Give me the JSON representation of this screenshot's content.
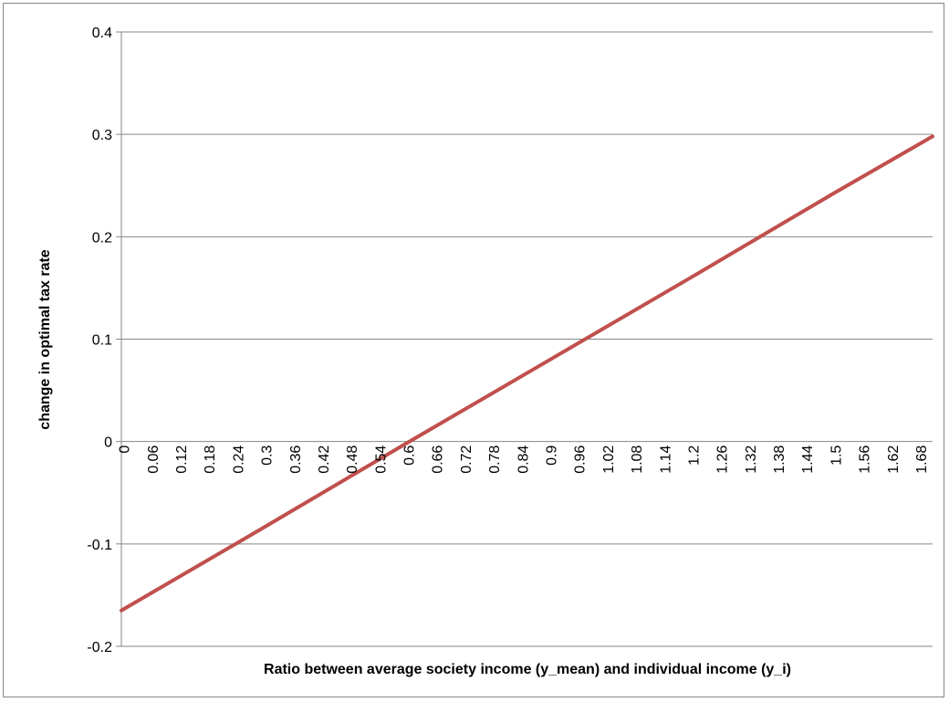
{
  "chart_data": {
    "type": "line",
    "title": "",
    "xlabel": "Ratio between average society income (y_mean) and individual income (y_i)",
    "ylabel": "change in optimal tax rate",
    "ylim": [
      -0.2,
      0.4
    ],
    "xlim": [
      0,
      1.71
    ],
    "grid": "horizontal",
    "legend": "none",
    "y_ticks": [
      "0.4",
      "0.3",
      "0.2",
      "0.1",
      "0",
      "-0.1",
      "-0.2"
    ],
    "x_tick_labels": [
      "0",
      "0.06",
      "0.12",
      "0.18",
      "0.24",
      "0.3",
      "0.36",
      "0.42",
      "0.48",
      "0.54",
      "0.6",
      "0.66",
      "0.72",
      "0.78",
      "0.84",
      "0.9",
      "0.96",
      "1.02",
      "1.08",
      "1.14",
      "1.2",
      "1.26",
      "1.32",
      "1.38",
      "1.44",
      "1.5",
      "1.56",
      "1.62",
      "1.68"
    ],
    "series_color": "#C0504D",
    "series": [
      {
        "x": [
          0,
          0.3,
          0.6,
          0.9,
          1.2,
          1.5,
          1.71
        ],
        "y": [
          -0.165,
          -0.084,
          -0.002,
          0.079,
          0.16,
          0.242,
          0.298
        ]
      }
    ]
  }
}
